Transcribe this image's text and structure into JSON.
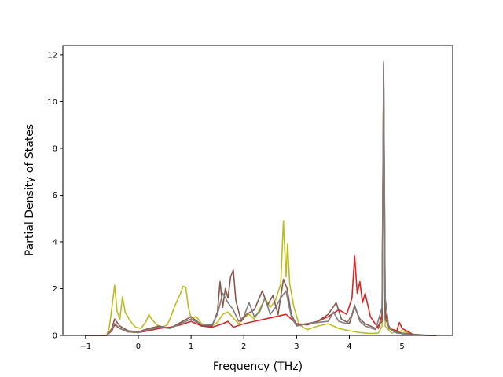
{
  "chart_data": {
    "type": "line",
    "title": "",
    "xlabel": "Frequency (THz)",
    "ylabel": "Partial Density of States",
    "xlim": [
      -1.43,
      5.96
    ],
    "ylim": [
      0,
      12.4
    ],
    "xticks": [
      -1,
      0,
      1,
      2,
      3,
      4,
      5
    ],
    "yticks": [
      0,
      2,
      4,
      6,
      8,
      10,
      12
    ],
    "grid": false,
    "legend": "none",
    "series": [
      {
        "color": "#bcbd22",
        "points": [
          [
            -1.0,
            0
          ],
          [
            -0.6,
            0
          ],
          [
            -0.55,
            0.35
          ],
          [
            -0.5,
            1.2
          ],
          [
            -0.45,
            2.15
          ],
          [
            -0.4,
            1.0
          ],
          [
            -0.35,
            0.7
          ],
          [
            -0.3,
            1.65
          ],
          [
            -0.25,
            1.0
          ],
          [
            -0.15,
            0.6
          ],
          [
            -0.05,
            0.35
          ],
          [
            0.05,
            0.3
          ],
          [
            0.15,
            0.6
          ],
          [
            0.2,
            0.9
          ],
          [
            0.25,
            0.7
          ],
          [
            0.35,
            0.45
          ],
          [
            0.45,
            0.35
          ],
          [
            0.55,
            0.45
          ],
          [
            0.6,
            0.7
          ],
          [
            0.7,
            1.3
          ],
          [
            0.8,
            1.8
          ],
          [
            0.85,
            2.1
          ],
          [
            0.9,
            2.05
          ],
          [
            0.95,
            1.2
          ],
          [
            1.0,
            0.75
          ],
          [
            1.1,
            0.8
          ],
          [
            1.2,
            0.5
          ],
          [
            1.35,
            0.35
          ],
          [
            1.5,
            0.55
          ],
          [
            1.6,
            0.9
          ],
          [
            1.7,
            1.0
          ],
          [
            1.8,
            0.75
          ],
          [
            1.9,
            0.5
          ],
          [
            2.0,
            0.75
          ],
          [
            2.1,
            0.9
          ],
          [
            2.2,
            0.7
          ],
          [
            2.3,
            1.1
          ],
          [
            2.4,
            1.6
          ],
          [
            2.5,
            1.2
          ],
          [
            2.6,
            1.5
          ],
          [
            2.7,
            2.2
          ],
          [
            2.75,
            4.9
          ],
          [
            2.8,
            2.5
          ],
          [
            2.83,
            3.9
          ],
          [
            2.87,
            2.2
          ],
          [
            2.95,
            1.2
          ],
          [
            3.05,
            0.45
          ],
          [
            3.2,
            0.25
          ],
          [
            3.4,
            0.4
          ],
          [
            3.6,
            0.5
          ],
          [
            3.8,
            0.3
          ],
          [
            4.0,
            0.2
          ],
          [
            4.2,
            0.12
          ],
          [
            4.4,
            0.08
          ],
          [
            4.55,
            0.1
          ],
          [
            4.62,
            0.4
          ],
          [
            4.65,
            11.4
          ],
          [
            4.68,
            0.4
          ],
          [
            4.8,
            0.1
          ],
          [
            5.0,
            0.2
          ],
          [
            5.2,
            0.05
          ],
          [
            5.5,
            0
          ],
          [
            5.65,
            0
          ]
        ]
      },
      {
        "color": "#d62728",
        "points": [
          [
            -1.0,
            0
          ],
          [
            -0.6,
            0
          ],
          [
            -0.5,
            0.2
          ],
          [
            -0.45,
            0.45
          ],
          [
            -0.35,
            0.3
          ],
          [
            -0.2,
            0.15
          ],
          [
            0.0,
            0.12
          ],
          [
            0.2,
            0.2
          ],
          [
            0.4,
            0.3
          ],
          [
            0.6,
            0.35
          ],
          [
            0.8,
            0.45
          ],
          [
            1.0,
            0.6
          ],
          [
            1.2,
            0.4
          ],
          [
            1.4,
            0.35
          ],
          [
            1.6,
            0.5
          ],
          [
            1.7,
            0.6
          ],
          [
            1.8,
            0.35
          ],
          [
            2.0,
            0.5
          ],
          [
            2.2,
            0.6
          ],
          [
            2.4,
            0.7
          ],
          [
            2.6,
            0.8
          ],
          [
            2.8,
            0.9
          ],
          [
            3.0,
            0.5
          ],
          [
            3.2,
            0.45
          ],
          [
            3.4,
            0.6
          ],
          [
            3.6,
            0.8
          ],
          [
            3.8,
            1.1
          ],
          [
            3.95,
            0.9
          ],
          [
            4.05,
            1.6
          ],
          [
            4.1,
            3.4
          ],
          [
            4.15,
            1.8
          ],
          [
            4.2,
            2.3
          ],
          [
            4.25,
            1.4
          ],
          [
            4.3,
            1.8
          ],
          [
            4.4,
            0.8
          ],
          [
            4.55,
            0.3
          ],
          [
            4.62,
            0.9
          ],
          [
            4.65,
            11.6
          ],
          [
            4.68,
            1.0
          ],
          [
            4.75,
            0.3
          ],
          [
            4.9,
            0.2
          ],
          [
            4.95,
            0.55
          ],
          [
            5.0,
            0.3
          ],
          [
            5.2,
            0.05
          ],
          [
            5.5,
            0
          ],
          [
            5.65,
            0
          ]
        ]
      },
      {
        "color": "#8c564b",
        "points": [
          [
            -1.0,
            0
          ],
          [
            -0.6,
            0
          ],
          [
            -0.5,
            0.3
          ],
          [
            -0.45,
            0.7
          ],
          [
            -0.35,
            0.4
          ],
          [
            -0.2,
            0.2
          ],
          [
            0.0,
            0.15
          ],
          [
            0.2,
            0.3
          ],
          [
            0.4,
            0.4
          ],
          [
            0.6,
            0.3
          ],
          [
            0.8,
            0.55
          ],
          [
            1.0,
            0.8
          ],
          [
            1.2,
            0.45
          ],
          [
            1.4,
            0.4
          ],
          [
            1.5,
            1.0
          ],
          [
            1.55,
            2.3
          ],
          [
            1.6,
            1.2
          ],
          [
            1.65,
            2.0
          ],
          [
            1.7,
            1.6
          ],
          [
            1.75,
            2.5
          ],
          [
            1.8,
            2.8
          ],
          [
            1.85,
            1.5
          ],
          [
            1.95,
            0.6
          ],
          [
            2.05,
            0.9
          ],
          [
            2.2,
            1.1
          ],
          [
            2.35,
            1.9
          ],
          [
            2.45,
            1.3
          ],
          [
            2.55,
            1.7
          ],
          [
            2.65,
            0.9
          ],
          [
            2.75,
            2.4
          ],
          [
            2.82,
            2.0
          ],
          [
            2.9,
            0.9
          ],
          [
            3.0,
            0.45
          ],
          [
            3.2,
            0.5
          ],
          [
            3.4,
            0.6
          ],
          [
            3.6,
            0.9
          ],
          [
            3.75,
            1.4
          ],
          [
            3.85,
            0.7
          ],
          [
            4.0,
            0.5
          ],
          [
            4.1,
            1.2
          ],
          [
            4.2,
            0.7
          ],
          [
            4.3,
            0.5
          ],
          [
            4.5,
            0.3
          ],
          [
            4.62,
            0.6
          ],
          [
            4.65,
            11.3
          ],
          [
            4.68,
            0.7
          ],
          [
            4.8,
            0.2
          ],
          [
            5.0,
            0.1
          ],
          [
            5.3,
            0.02
          ],
          [
            5.5,
            0
          ],
          [
            5.65,
            0
          ]
        ]
      },
      {
        "color": "#7f7f7f",
        "points": [
          [
            -1.0,
            0
          ],
          [
            -0.6,
            0
          ],
          [
            -0.5,
            0.25
          ],
          [
            -0.45,
            0.5
          ],
          [
            -0.35,
            0.3
          ],
          [
            -0.2,
            0.15
          ],
          [
            0.0,
            0.12
          ],
          [
            0.2,
            0.25
          ],
          [
            0.4,
            0.35
          ],
          [
            0.6,
            0.3
          ],
          [
            0.8,
            0.5
          ],
          [
            1.0,
            0.7
          ],
          [
            1.2,
            0.45
          ],
          [
            1.4,
            0.45
          ],
          [
            1.5,
            0.9
          ],
          [
            1.6,
            1.8
          ],
          [
            1.7,
            1.4
          ],
          [
            1.8,
            1.1
          ],
          [
            1.9,
            0.6
          ],
          [
            2.0,
            0.8
          ],
          [
            2.1,
            1.4
          ],
          [
            2.2,
            0.8
          ],
          [
            2.3,
            1.0
          ],
          [
            2.4,
            1.6
          ],
          [
            2.5,
            0.9
          ],
          [
            2.6,
            1.2
          ],
          [
            2.7,
            1.6
          ],
          [
            2.8,
            1.9
          ],
          [
            2.9,
            0.8
          ],
          [
            3.0,
            0.4
          ],
          [
            3.2,
            0.5
          ],
          [
            3.4,
            0.55
          ],
          [
            3.6,
            0.6
          ],
          [
            3.7,
            1.0
          ],
          [
            3.8,
            0.6
          ],
          [
            3.95,
            0.5
          ],
          [
            4.05,
            0.9
          ],
          [
            4.1,
            1.3
          ],
          [
            4.2,
            0.6
          ],
          [
            4.3,
            0.4
          ],
          [
            4.5,
            0.25
          ],
          [
            4.62,
            1.2
          ],
          [
            4.65,
            11.7
          ],
          [
            4.68,
            1.6
          ],
          [
            4.75,
            0.3
          ],
          [
            4.9,
            0.1
          ],
          [
            5.2,
            0.02
          ],
          [
            5.5,
            0
          ],
          [
            5.65,
            0
          ]
        ]
      }
    ]
  }
}
